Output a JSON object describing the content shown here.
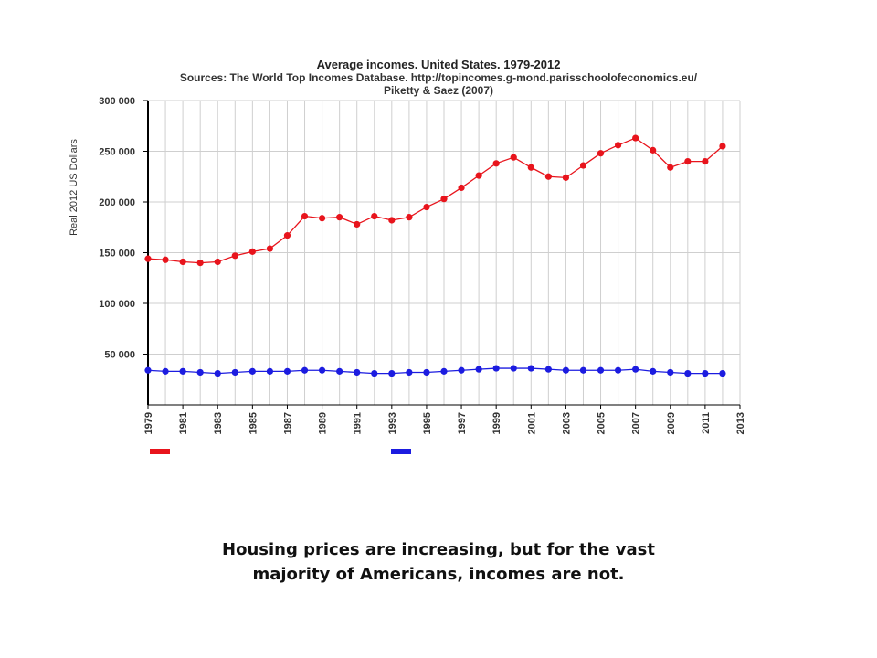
{
  "chart_data": {
    "type": "line",
    "title": "Average incomes. United States. 1979-2012",
    "subtitle_lines": [
      "Sources: The World Top Incomes Database. http://topincomes.g-mond.parisschoolofeconomics.eu/",
      "Piketty & Saez (2007)"
    ],
    "ylabel": "Real 2012 US Dollars",
    "ylim": [
      0,
      300000
    ],
    "xlim": [
      1979,
      2013
    ],
    "y_ticks": [
      "50 000",
      "100 000",
      "150 000",
      "200 000",
      "250 000",
      "300 000"
    ],
    "y_tick_values": [
      50000,
      100000,
      150000,
      200000,
      250000,
      300000
    ],
    "x_ticks": [
      "1979",
      "1981",
      "1983",
      "1985",
      "1987",
      "1989",
      "1991",
      "1993",
      "1995",
      "1997",
      "1999",
      "2001",
      "2003",
      "2005",
      "2007",
      "2009",
      "2011",
      "2013"
    ],
    "grid": true,
    "x": [
      1979,
      1980,
      1981,
      1982,
      1983,
      1984,
      1985,
      1986,
      1987,
      1988,
      1989,
      1990,
      1991,
      1992,
      1993,
      1994,
      1995,
      1996,
      1997,
      1998,
      1999,
      2000,
      2001,
      2002,
      2003,
      2004,
      2005,
      2006,
      2007,
      2008,
      2009,
      2010,
      2011,
      2012
    ],
    "series": [
      {
        "color": "#e8141c",
        "values": [
          144000,
          143000,
          141000,
          140000,
          141000,
          147000,
          151000,
          154000,
          167000,
          186000,
          184000,
          185000,
          178000,
          186000,
          182000,
          185000,
          195000,
          203000,
          214000,
          226000,
          238000,
          244000,
          234000,
          225000,
          224000,
          236000,
          248000,
          256000,
          263000,
          251000,
          234000,
          240000,
          240000,
          255000
        ]
      },
      {
        "color": "#1c1ce0",
        "values": [
          34000,
          33000,
          33000,
          32000,
          31000,
          32000,
          33000,
          33000,
          33000,
          34000,
          34000,
          33000,
          32000,
          31000,
          31000,
          32000,
          32000,
          33000,
          34000,
          35000,
          36000,
          36000,
          36000,
          35000,
          34000,
          34000,
          34000,
          34000,
          35000,
          33000,
          32000,
          31000,
          31000,
          31000
        ]
      }
    ]
  },
  "caption": {
    "line1": "Housing prices are increasing, but for the vast",
    "line2": "majority of Americans, incomes are not."
  }
}
